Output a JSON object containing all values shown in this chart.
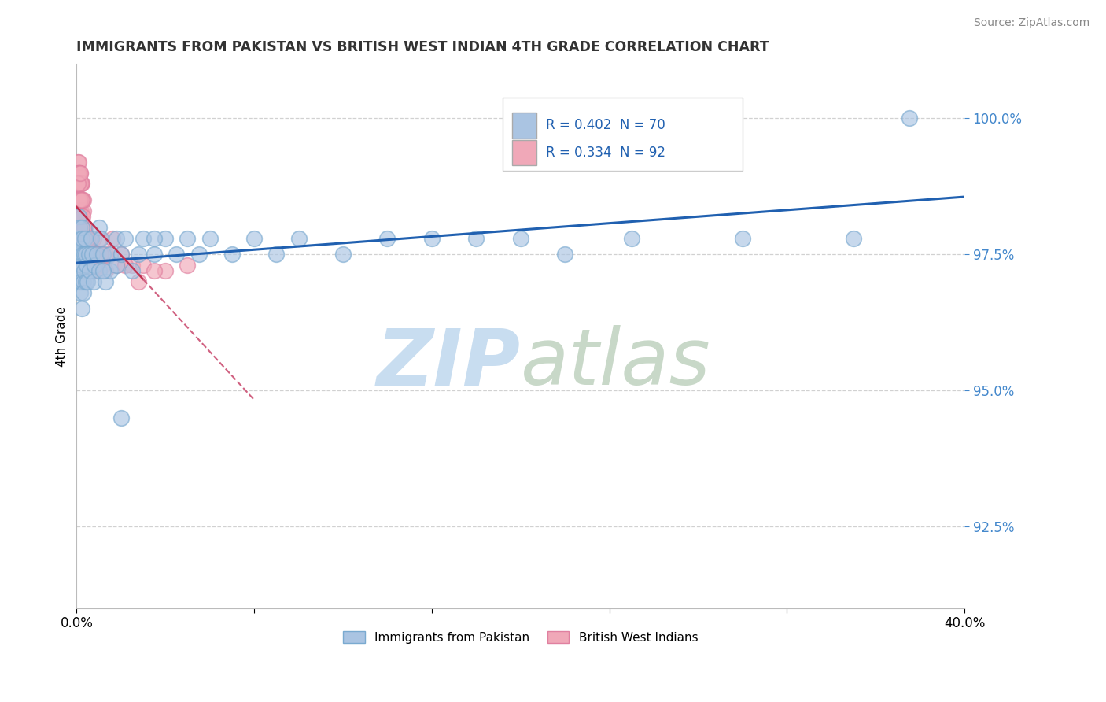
{
  "title": "IMMIGRANTS FROM PAKISTAN VS BRITISH WEST INDIAN 4TH GRADE CORRELATION CHART",
  "source": "Source: ZipAtlas.com",
  "ylabel": "4th Grade",
  "xlim": [
    0.0,
    40.0
  ],
  "ylim": [
    91.0,
    101.0
  ],
  "yticks": [
    92.5,
    95.0,
    97.5,
    100.0
  ],
  "ytick_labels": [
    "92.5%",
    "95.0%",
    "97.5%",
    "100.0%"
  ],
  "blue_R": 0.402,
  "blue_N": 70,
  "pink_R": 0.334,
  "pink_N": 92,
  "blue_color": "#aac4e2",
  "pink_color": "#f0a8b8",
  "blue_edge_color": "#7aaad0",
  "pink_edge_color": "#e080a0",
  "blue_line_color": "#2060b0",
  "pink_line_color": "#c03050",
  "pink_dash_color": "#d06080",
  "legend_label_blue": "Immigrants from Pakistan",
  "legend_label_pink": "British West Indians",
  "blue_R_color": "#2060b0",
  "pink_R_color": "#c03050",
  "ytick_color": "#4488cc",
  "watermark_zip_color": "#c8ddf0",
  "watermark_atlas_color": "#c8d8c8",
  "blue_x": [
    0.05,
    0.08,
    0.08,
    0.1,
    0.12,
    0.12,
    0.14,
    0.15,
    0.15,
    0.18,
    0.2,
    0.2,
    0.22,
    0.22,
    0.25,
    0.25,
    0.28,
    0.3,
    0.3,
    0.35,
    0.35,
    0.38,
    0.4,
    0.4,
    0.45,
    0.5,
    0.55,
    0.6,
    0.65,
    0.7,
    0.75,
    0.8,
    0.9,
    1.0,
    1.0,
    1.1,
    1.2,
    1.3,
    1.5,
    1.5,
    1.8,
    1.8,
    2.0,
    2.2,
    2.5,
    2.8,
    3.0,
    3.5,
    4.0,
    4.5,
    5.0,
    5.5,
    6.0,
    7.0,
    8.0,
    9.0,
    10.0,
    12.0,
    14.0,
    16.0,
    18.0,
    20.0,
    22.0,
    25.0,
    30.0,
    35.0,
    37.5,
    3.5,
    2.0,
    1.2
  ],
  "blue_y": [
    97.8,
    98.2,
    97.5,
    97.0,
    97.8,
    97.2,
    98.0,
    97.5,
    96.8,
    97.2,
    97.6,
    97.0,
    97.3,
    96.5,
    98.0,
    97.8,
    97.5,
    97.0,
    96.8,
    97.5,
    97.2,
    97.8,
    97.5,
    97.0,
    97.3,
    97.0,
    97.5,
    97.2,
    97.8,
    97.5,
    97.0,
    97.3,
    97.5,
    98.0,
    97.2,
    97.8,
    97.5,
    97.0,
    97.5,
    97.2,
    97.8,
    97.3,
    97.5,
    97.8,
    97.2,
    97.5,
    97.8,
    97.5,
    97.8,
    97.5,
    97.8,
    97.5,
    97.8,
    97.5,
    97.8,
    97.5,
    97.8,
    97.5,
    97.8,
    97.8,
    97.8,
    97.8,
    97.5,
    97.8,
    97.8,
    97.8,
    100.0,
    97.8,
    94.5,
    97.2
  ],
  "pink_x": [
    0.03,
    0.04,
    0.05,
    0.05,
    0.06,
    0.07,
    0.08,
    0.08,
    0.09,
    0.1,
    0.1,
    0.11,
    0.12,
    0.12,
    0.13,
    0.14,
    0.15,
    0.15,
    0.16,
    0.17,
    0.18,
    0.18,
    0.2,
    0.2,
    0.22,
    0.22,
    0.25,
    0.25,
    0.28,
    0.3,
    0.3,
    0.32,
    0.35,
    0.35,
    0.38,
    0.4,
    0.45,
    0.5,
    0.55,
    0.6,
    0.65,
    0.7,
    0.75,
    0.8,
    0.9,
    1.0,
    1.0,
    1.1,
    1.2,
    1.3,
    1.5,
    1.8,
    2.0,
    2.5,
    3.0,
    4.0,
    5.0,
    0.08,
    0.1,
    0.12,
    0.15,
    0.18,
    0.2,
    0.08,
    0.05,
    0.12,
    0.2,
    0.25,
    0.3,
    0.35,
    0.4,
    0.45,
    0.5,
    0.55,
    0.6,
    0.65,
    0.18,
    0.22,
    0.28,
    0.35,
    0.42,
    0.5,
    0.6,
    0.7,
    0.8,
    0.9,
    1.1,
    1.3,
    1.6,
    2.2,
    2.8,
    3.5
  ],
  "pink_y": [
    99.0,
    98.8,
    99.2,
    98.5,
    99.0,
    98.8,
    99.2,
    98.5,
    99.0,
    98.8,
    98.5,
    99.0,
    98.8,
    98.5,
    98.8,
    99.0,
    98.8,
    98.3,
    98.8,
    98.5,
    99.0,
    98.5,
    98.8,
    98.3,
    98.5,
    98.0,
    98.8,
    98.2,
    98.5,
    98.3,
    98.0,
    98.5,
    98.0,
    97.8,
    98.0,
    97.8,
    97.8,
    97.8,
    97.5,
    97.8,
    97.5,
    97.5,
    97.8,
    97.5,
    97.5,
    97.8,
    97.5,
    97.5,
    97.3,
    97.5,
    97.5,
    97.3,
    97.5,
    97.3,
    97.3,
    97.2,
    97.3,
    98.5,
    98.2,
    98.5,
    98.8,
    98.5,
    98.8,
    99.0,
    98.8,
    98.2,
    97.8,
    98.0,
    97.8,
    98.0,
    97.8,
    97.5,
    97.8,
    97.5,
    97.8,
    97.5,
    99.0,
    98.5,
    98.2,
    97.8,
    97.5,
    97.8,
    97.5,
    97.2,
    97.5,
    97.2,
    97.5,
    97.2,
    97.8,
    97.3,
    97.0,
    97.2
  ]
}
